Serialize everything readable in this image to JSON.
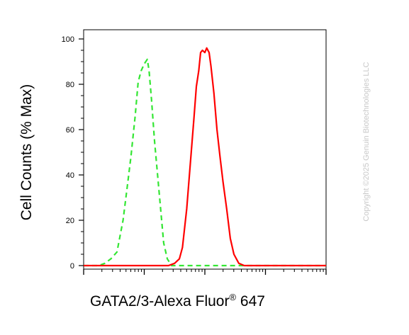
{
  "chart_data": {
    "type": "line",
    "title": "",
    "xlabel": "GATA2/3-Alexa Fluor",
    "xlabel_superscript": "®",
    "xlabel_suffix": " 647",
    "ylabel": "Cell Counts (% Max)",
    "ylim": [
      0,
      100
    ],
    "yticks": [
      0,
      20,
      40,
      60,
      80,
      100
    ],
    "xscale": "log",
    "xlim_log10": [
      0,
      4
    ],
    "x_tick_labels_visible": false,
    "legend": "none",
    "series": [
      {
        "style": "dashed",
        "color": "#33e633",
        "points": [
          [
            0.0,
            0
          ],
          [
            0.25,
            0
          ],
          [
            0.35,
            1
          ],
          [
            0.45,
            3
          ],
          [
            0.55,
            6
          ],
          [
            0.65,
            20
          ],
          [
            0.72,
            35
          ],
          [
            0.78,
            48
          ],
          [
            0.85,
            66
          ],
          [
            0.9,
            81
          ],
          [
            0.95,
            86
          ],
          [
            1.0,
            89
          ],
          [
            1.05,
            91
          ],
          [
            1.08,
            86
          ],
          [
            1.12,
            73
          ],
          [
            1.17,
            55
          ],
          [
            1.22,
            40
          ],
          [
            1.27,
            25
          ],
          [
            1.32,
            10
          ],
          [
            1.38,
            3
          ],
          [
            1.45,
            0
          ],
          [
            1.8,
            0
          ],
          [
            2.0,
            0
          ],
          [
            2.1,
            0
          ],
          [
            2.3,
            0
          ],
          [
            2.5,
            0
          ],
          [
            4.0,
            0
          ]
        ]
      },
      {
        "style": "solid",
        "color": "#ff0000",
        "points": [
          [
            0.0,
            0
          ],
          [
            1.4,
            0
          ],
          [
            1.5,
            1
          ],
          [
            1.58,
            3
          ],
          [
            1.63,
            8
          ],
          [
            1.7,
            25
          ],
          [
            1.76,
            45
          ],
          [
            1.82,
            65
          ],
          [
            1.86,
            79
          ],
          [
            1.9,
            86
          ],
          [
            1.93,
            94
          ],
          [
            1.96,
            95
          ],
          [
            2.0,
            94
          ],
          [
            2.03,
            96
          ],
          [
            2.07,
            94
          ],
          [
            2.1,
            88
          ],
          [
            2.15,
            76
          ],
          [
            2.2,
            60
          ],
          [
            2.25,
            48
          ],
          [
            2.3,
            37
          ],
          [
            2.36,
            25
          ],
          [
            2.42,
            12
          ],
          [
            2.48,
            5
          ],
          [
            2.56,
            1
          ],
          [
            2.65,
            0
          ],
          [
            4.0,
            0
          ]
        ]
      }
    ]
  },
  "copyright": "Copyright ©2025 Genuin Biotechnologies LLC"
}
